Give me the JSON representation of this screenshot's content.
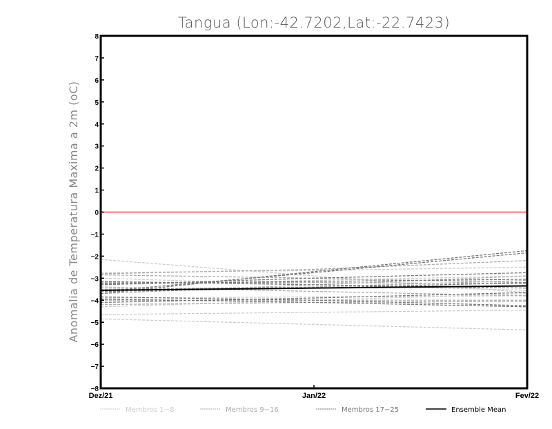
{
  "chart_data": {
    "type": "line",
    "title": "Tangua (Lon:-42.7202,Lat:-22.7423)",
    "xlabel": "",
    "ylabel": "Anomalia de Temperatura Maxima a 2m (oC)",
    "x": [
      "Dez/21",
      "Jan/22",
      "Fev/22"
    ],
    "ylim": [
      -8,
      8
    ],
    "yticks": [
      -8,
      -7,
      -6,
      -5,
      -4,
      -3,
      -2,
      -1,
      0,
      1,
      2,
      3,
      4,
      5,
      6,
      7,
      8
    ],
    "grid": false,
    "reference_line": {
      "y": 0,
      "color": "#ff4040"
    },
    "legend_placement": "bottom",
    "groups": [
      {
        "name": "Membros 1-8",
        "color": "#cccccc",
        "style": "dashed"
      },
      {
        "name": "Membros 9-16",
        "color": "#aaaaaa",
        "style": "dashed"
      },
      {
        "name": "Membros 17-25",
        "color": "#777777",
        "style": "dashed"
      },
      {
        "name": "Ensemble Mean",
        "color": "#000000",
        "style": "solid"
      }
    ],
    "series": [
      {
        "name": "1",
        "group": 0,
        "values": [
          -2.15,
          -2.9,
          -3.65
        ]
      },
      {
        "name": "2",
        "group": 0,
        "values": [
          -4.65,
          -4.55,
          -4.45
        ]
      },
      {
        "name": "3",
        "group": 0,
        "values": [
          -4.85,
          -5.1,
          -5.35
        ]
      },
      {
        "name": "4",
        "group": 0,
        "values": [
          -2.75,
          -2.65,
          -2.5
        ]
      },
      {
        "name": "5",
        "group": 0,
        "values": [
          -3.3,
          -3.1,
          -2.9
        ]
      },
      {
        "name": "6",
        "group": 0,
        "values": [
          -3.9,
          -3.85,
          -3.8
        ]
      },
      {
        "name": "7",
        "group": 0,
        "values": [
          -3.0,
          -3.3,
          -3.55
        ]
      },
      {
        "name": "8",
        "group": 0,
        "values": [
          -4.3,
          -4.0,
          -3.7
        ]
      },
      {
        "name": "9",
        "group": 1,
        "values": [
          -2.8,
          -2.6,
          -2.2
        ]
      },
      {
        "name": "10",
        "group": 1,
        "values": [
          -3.2,
          -3.2,
          -3.25
        ]
      },
      {
        "name": "11",
        "group": 1,
        "values": [
          -3.5,
          -3.4,
          -3.1
        ]
      },
      {
        "name": "12",
        "group": 1,
        "values": [
          -4.0,
          -4.0,
          -4.0
        ]
      },
      {
        "name": "13",
        "group": 1,
        "values": [
          -3.7,
          -3.3,
          -2.9
        ]
      },
      {
        "name": "14",
        "group": 1,
        "values": [
          -4.2,
          -4.1,
          -4.05
        ]
      },
      {
        "name": "15",
        "group": 1,
        "values": [
          -2.85,
          -3.0,
          -3.2
        ]
      },
      {
        "name": "16",
        "group": 1,
        "values": [
          -3.4,
          -3.6,
          -3.8
        ]
      },
      {
        "name": "17",
        "group": 2,
        "values": [
          -3.7,
          -2.7,
          -1.75
        ]
      },
      {
        "name": "18",
        "group": 2,
        "values": [
          -3.6,
          -2.75,
          -1.85
        ]
      },
      {
        "name": "19",
        "group": 2,
        "values": [
          -3.25,
          -3.15,
          -3.05
        ]
      },
      {
        "name": "20",
        "group": 2,
        "values": [
          -3.85,
          -4.0,
          -4.25
        ]
      },
      {
        "name": "21",
        "group": 2,
        "values": [
          -3.95,
          -4.1,
          -4.3
        ]
      },
      {
        "name": "22",
        "group": 2,
        "values": [
          -3.3,
          -3.0,
          -2.75
        ]
      },
      {
        "name": "23",
        "group": 2,
        "values": [
          -3.15,
          -3.3,
          -3.45
        ]
      },
      {
        "name": "24",
        "group": 2,
        "values": [
          -3.6,
          -3.45,
          -3.2
        ]
      },
      {
        "name": "25",
        "group": 2,
        "values": [
          -4.1,
          -3.9,
          -3.65
        ]
      },
      {
        "name": "Ensemble Mean",
        "group": 3,
        "values": [
          -3.55,
          -3.45,
          -3.35
        ]
      }
    ]
  }
}
